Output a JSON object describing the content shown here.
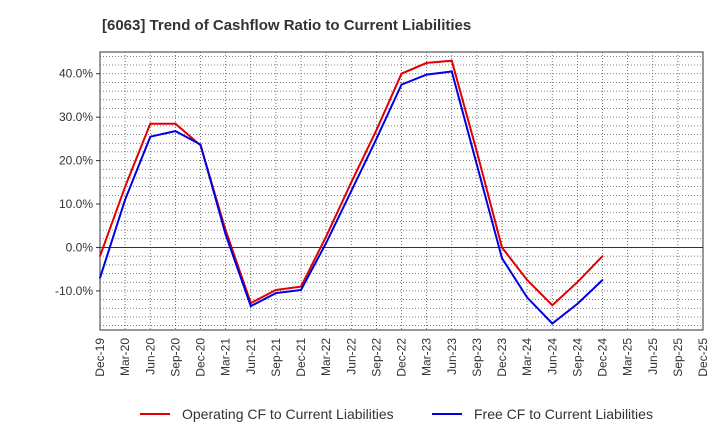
{
  "chart_data": {
    "type": "line",
    "title": "[6063]  Trend of Cashflow Ratio to Current Liabilities",
    "xlabel": "",
    "ylabel": "",
    "x_tick_labels": [
      "Dec-19",
      "Mar-20",
      "Jun-20",
      "Sep-20",
      "Dec-20",
      "Mar-21",
      "Jun-21",
      "Sep-21",
      "Dec-21",
      "Mar-22",
      "Jun-22",
      "Sep-22",
      "Dec-22",
      "Mar-23",
      "Jun-23",
      "Sep-23",
      "Dec-23",
      "Mar-24",
      "Jun-24",
      "Sep-24",
      "Dec-24",
      "Mar-25",
      "Jun-25",
      "Sep-25",
      "Dec-25"
    ],
    "x_label_step": 1,
    "y_tick_values": [
      -10,
      0,
      10,
      20,
      30,
      40
    ],
    "y_tick_labels": [
      "-10.0%",
      "0.0%",
      "10.0%",
      "20.0%",
      "30.0%",
      "40.0%"
    ],
    "ylim": [
      -19,
      45
    ],
    "grid": true,
    "zero_line": true,
    "legend_position": "bottom",
    "series": [
      {
        "name": "Operating CF to Current Liabilities",
        "color": "#e00000",
        "x": [
          "Dec-19",
          "Mar-20",
          "Jun-20",
          "Sep-20",
          "Dec-20",
          "Mar-21",
          "Jun-21",
          "Sep-21",
          "Dec-21",
          "Mar-22",
          "Jun-22",
          "Sep-22",
          "Dec-22",
          "Mar-23",
          "Jun-23",
          "Sep-23",
          "Dec-23",
          "Mar-24",
          "Jun-24",
          "Sep-24",
          "Dec-24"
        ],
        "values": [
          -2.0,
          14.0,
          28.5,
          28.5,
          23.5,
          4.0,
          -12.8,
          -9.8,
          -9.0,
          2.5,
          15.0,
          27.0,
          40.0,
          42.5,
          43.0,
          22.0,
          0.0,
          -7.5,
          -13.3,
          -8.0,
          -2.0
        ]
      },
      {
        "name": "Free CF to Current Liabilities",
        "color": "#0000e0",
        "x": [
          "Dec-19",
          "Mar-20",
          "Jun-20",
          "Sep-20",
          "Dec-20",
          "Mar-21",
          "Jun-21",
          "Sep-21",
          "Dec-21",
          "Mar-22",
          "Jun-22",
          "Sep-22",
          "Dec-22",
          "Mar-23",
          "Jun-23",
          "Sep-23",
          "Dec-23",
          "Mar-24",
          "Jun-24",
          "Sep-24",
          "Dec-24"
        ],
        "values": [
          -7.0,
          11.0,
          25.5,
          26.8,
          23.7,
          3.0,
          -13.5,
          -10.5,
          -9.8,
          1.0,
          13.0,
          25.0,
          37.5,
          39.8,
          40.5,
          19.0,
          -2.5,
          -11.5,
          -17.5,
          -13.0,
          -7.5
        ]
      }
    ]
  }
}
